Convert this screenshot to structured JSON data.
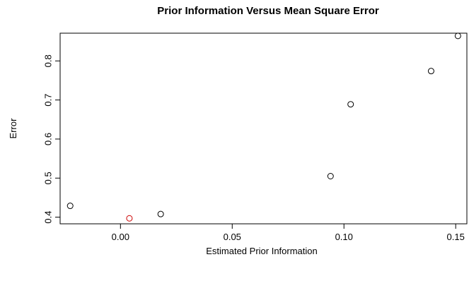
{
  "chart_data": {
    "type": "scatter",
    "title": "Prior Information Versus Mean Square Error",
    "xlabel": "Estimated Prior Information",
    "ylabel": "Error",
    "xlim": [
      -0.027,
      0.155
    ],
    "ylim": [
      0.383,
      0.871
    ],
    "x_ticks": [
      0.0,
      0.05,
      0.1,
      0.15
    ],
    "x_tick_labels": [
      "0.00",
      "0.05",
      "0.10",
      "0.15"
    ],
    "y_ticks": [
      0.4,
      0.5,
      0.6,
      0.7,
      0.8
    ],
    "y_tick_labels": [
      "0.4",
      "0.5",
      "0.6",
      "0.7",
      "0.8"
    ],
    "grid": false,
    "legend": "none",
    "points": [
      {
        "x": -0.0225,
        "y": 0.429,
        "color": "#000000"
      },
      {
        "x": 0.004,
        "y": 0.397,
        "color": "#cc0000"
      },
      {
        "x": 0.018,
        "y": 0.408,
        "color": "#000000"
      },
      {
        "x": 0.094,
        "y": 0.505,
        "color": "#000000"
      },
      {
        "x": 0.103,
        "y": 0.689,
        "color": "#000000"
      },
      {
        "x": 0.139,
        "y": 0.774,
        "color": "#000000"
      },
      {
        "x": 0.151,
        "y": 0.864,
        "color": "#000000"
      }
    ]
  }
}
